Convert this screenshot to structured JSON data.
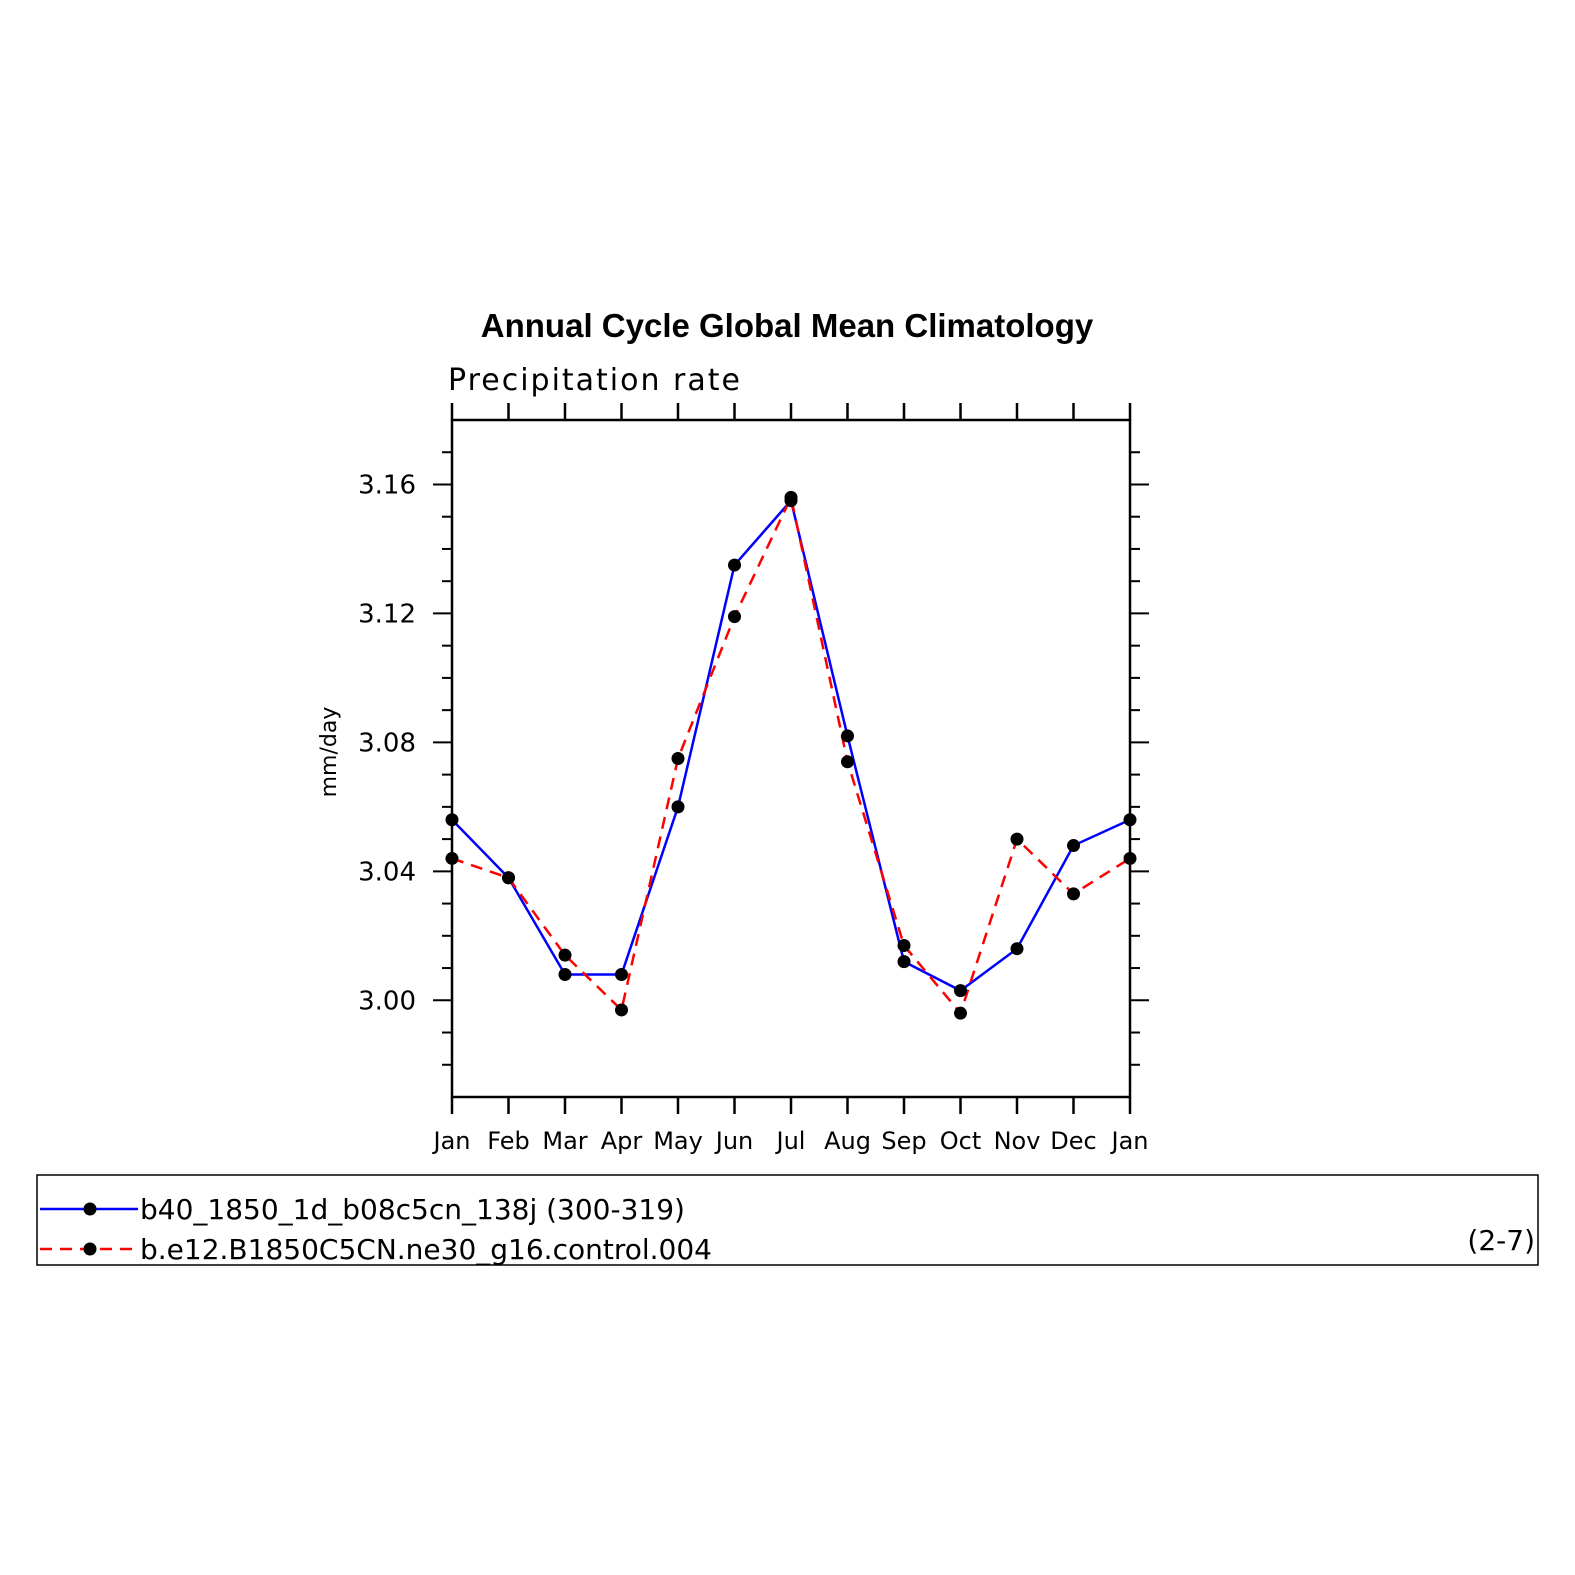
{
  "chart_data": {
    "type": "line",
    "title": "Annual Cycle Global Mean Climatology",
    "subtitle": "Precipitation rate",
    "ylabel": "mm/day",
    "xlabel": "",
    "categories": [
      "Jan",
      "Feb",
      "Mar",
      "Apr",
      "May",
      "Jun",
      "Jul",
      "Aug",
      "Sep",
      "Oct",
      "Nov",
      "Dec",
      "Jan"
    ],
    "ylim": [
      2.97,
      3.18
    ],
    "yticks": [
      "3.00",
      "3.04",
      "3.08",
      "3.12",
      "3.16"
    ],
    "ytick_values": [
      3.0,
      3.04,
      3.08,
      3.12,
      3.16
    ],
    "series": [
      {
        "name": "b40_1850_1d_b08c5cn_138j (300-319)",
        "color": "#0000ff",
        "style": "solid",
        "values": [
          3.056,
          3.038,
          3.008,
          3.008,
          3.06,
          3.135,
          3.155,
          3.082,
          3.012,
          3.003,
          3.016,
          3.048,
          3.056
        ]
      },
      {
        "name": "b.e12.B1850C5CN.ne30_g16.control.004",
        "color": "#ff0000",
        "style": "dashed",
        "values": [
          3.044,
          3.038,
          3.014,
          2.997,
          3.075,
          3.119,
          3.156,
          3.074,
          3.017,
          2.996,
          3.05,
          3.033,
          3.044
        ]
      }
    ],
    "legend_placement": "bottom",
    "grid": false,
    "panel_note": "(2-7)"
  }
}
